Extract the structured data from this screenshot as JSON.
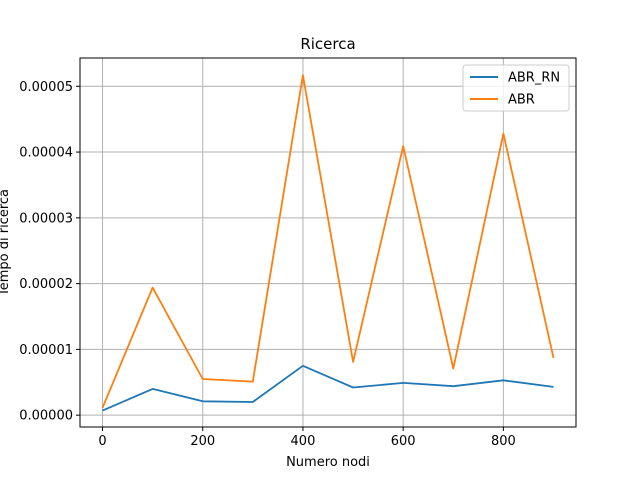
{
  "chart_data": {
    "type": "line",
    "title": "Ricerca",
    "xlabel": "Numero nodi",
    "ylabel": "Tempo di ricerca",
    "x": [
      0,
      100,
      200,
      300,
      400,
      500,
      600,
      700,
      800,
      900
    ],
    "series": [
      {
        "name": "ABR_RN",
        "color": "#1f77b4",
        "values": [
          7e-07,
          4e-06,
          2.1e-06,
          2e-06,
          7.5e-06,
          4.2e-06,
          4.9e-06,
          4.4e-06,
          5.3e-06,
          4.3e-06
        ]
      },
      {
        "name": "ABR",
        "color": "#ff7f0e",
        "values": [
          1.1e-06,
          1.94e-05,
          5.5e-06,
          5.1e-06,
          5.17e-05,
          8.1e-06,
          4.09e-05,
          7.1e-06,
          4.28e-05,
          8.7e-06
        ]
      }
    ],
    "xlim": [
      -45,
      945
    ],
    "ylim": [
      -1.8e-06,
      5.43e-05
    ],
    "xticks": [
      0,
      200,
      400,
      600,
      800
    ],
    "xtick_labels": [
      "0",
      "200",
      "400",
      "600",
      "800"
    ],
    "yticks": [
      0,
      1e-05,
      2e-05,
      3e-05,
      4e-05,
      5e-05
    ],
    "ytick_labels": [
      "0.00000",
      "0.00001",
      "0.00002",
      "0.00003",
      "0.00004",
      "0.00005"
    ],
    "grid": true,
    "legend_position": "top-right"
  }
}
